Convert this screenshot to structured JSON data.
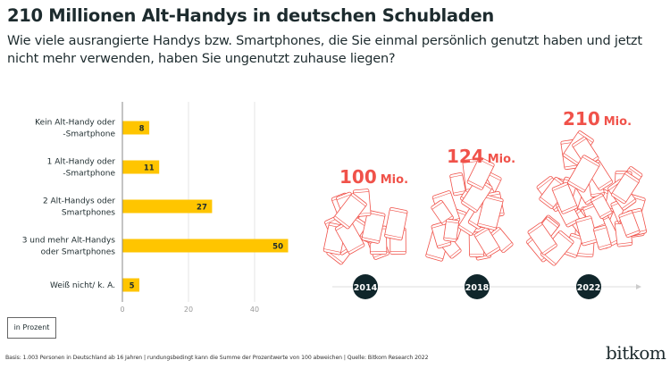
{
  "title": "210 Millionen Alt-Handys in deutschen Schubladen",
  "subtitle": "Wie viele ausrangierte Handys bzw. Smartphones, die Sie einmal persönlich genutzt haben und jetzt nicht mehr verwenden, haben Sie ungenutzt zuhause liegen?",
  "unit_label": "in Prozent",
  "footer": "Basis: 1.003 Personen in Deutschland ab 16 Jahren | rundungsbedingt kann die Summe der Prozentwerte von 100 abweichen | Quelle: Bitkom Research 2022",
  "logo": "bitkom",
  "colors": {
    "bar": "#ffc500",
    "accent": "#f0524a",
    "dark": "#10262b"
  },
  "chart_data": [
    {
      "type": "bar",
      "orientation": "horizontal",
      "categories": [
        [
          "Kein Alt-Handy oder",
          "-Smartphone"
        ],
        [
          "1 Alt-Handy oder",
          "-Smartphone"
        ],
        [
          "2 Alt-Handys oder",
          "Smartphones"
        ],
        [
          "3 und mehr Alt-Handys",
          "oder Smartphones"
        ],
        [
          "Weiß nicht/ k. A."
        ]
      ],
      "values": [
        8,
        11,
        27,
        50,
        5
      ],
      "xlim": [
        0,
        50
      ],
      "ticks": [
        "0",
        "20",
        "40"
      ],
      "grid": true
    },
    {
      "type": "pictogram",
      "categories": [
        "2014",
        "2018",
        "2022"
      ],
      "values": [
        100,
        124,
        210
      ],
      "labels": [
        {
          "num": "100",
          "unit": "Mio."
        },
        {
          "num": "124",
          "unit": "Mio."
        },
        {
          "num": "210",
          "unit": "Mio."
        }
      ]
    }
  ]
}
